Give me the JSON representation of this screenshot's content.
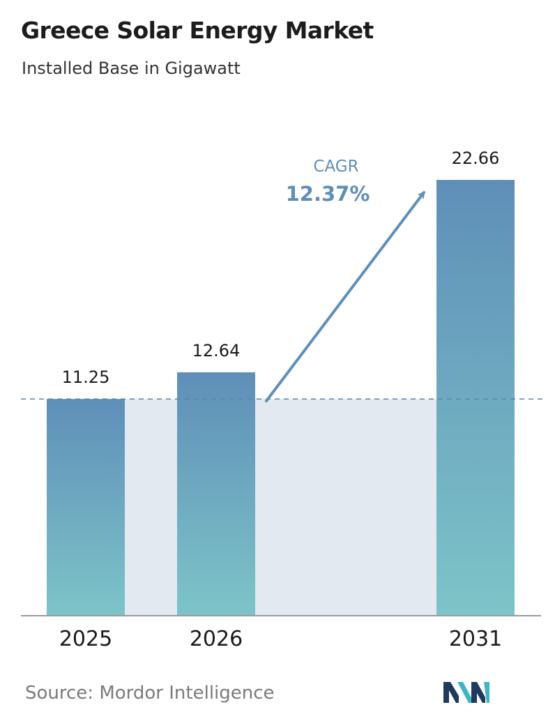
{
  "header": {
    "title": "Greece Solar Energy Market",
    "subtitle": "Installed Base in Gigawatt"
  },
  "chart_data": {
    "type": "bar",
    "title": "Greece Solar Energy Market",
    "subtitle": "Installed Base in Gigawatt",
    "xlabel": "",
    "ylabel": "",
    "categories": [
      "2025",
      "2026",
      "2031"
    ],
    "values": [
      11.25,
      12.64,
      22.66
    ],
    "data_labels": [
      "11.25",
      "12.64",
      "22.66"
    ],
    "ylim": [
      0,
      22.66
    ],
    "grid": false,
    "annotation": {
      "label": "CAGR",
      "value": "12.37%"
    }
  },
  "footer": {
    "source": "Source:  Mordor Intelligence"
  },
  "colors": {
    "bar_top": "#5f8fb8",
    "bar_bottom": "#7dc4c8",
    "band": "#e2e9f0",
    "reference_line": "#5a86a8",
    "arrow": "#5f8fb8",
    "cagr_text": "#5f8fb8",
    "axis": "#9a9a9a",
    "logo_dark": "#1f3a5f",
    "logo_teal": "#3fb5c5"
  }
}
